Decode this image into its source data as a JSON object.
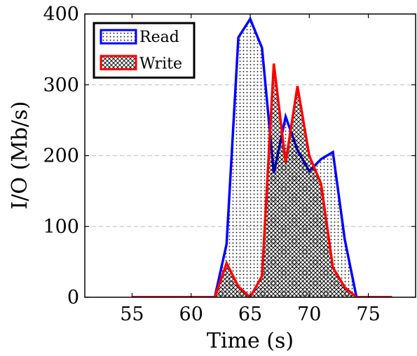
{
  "chart_data": {
    "type": "area",
    "title": "",
    "xlabel": "Time (s)",
    "ylabel": "I/O (Mb/s)",
    "xlim": [
      51,
      79
    ],
    "ylim": [
      0,
      400
    ],
    "xticks": [
      55,
      60,
      65,
      70,
      75
    ],
    "yticks": [
      0,
      100,
      200,
      300,
      400
    ],
    "grid": "horizontal dashed",
    "legend_position": "top-left",
    "series": [
      {
        "name": "Read",
        "color": "#0000ff",
        "fill_pattern": "dots",
        "x": [
          55,
          56,
          57,
          58,
          59,
          60,
          61,
          62,
          63,
          64,
          65,
          66,
          67,
          68,
          69,
          70,
          71,
          72,
          73,
          74,
          75,
          76,
          77
        ],
        "y": [
          0,
          0,
          0,
          0,
          0,
          0,
          0,
          0,
          75,
          367,
          393,
          352,
          175,
          255,
          208,
          178,
          195,
          205,
          82,
          0,
          0,
          0,
          0
        ]
      },
      {
        "name": "Write",
        "color": "#ff0000",
        "fill_pattern": "crosshatch",
        "x": [
          55,
          56,
          57,
          58,
          59,
          60,
          61,
          62,
          63,
          64,
          65,
          66,
          67,
          68,
          69,
          70,
          71,
          72,
          73,
          74,
          75,
          76,
          77
        ],
        "y": [
          0,
          0,
          0,
          0,
          0,
          0,
          0,
          0,
          48,
          15,
          0,
          30,
          330,
          190,
          298,
          200,
          160,
          42,
          14,
          0,
          0,
          0,
          0
        ]
      }
    ]
  }
}
